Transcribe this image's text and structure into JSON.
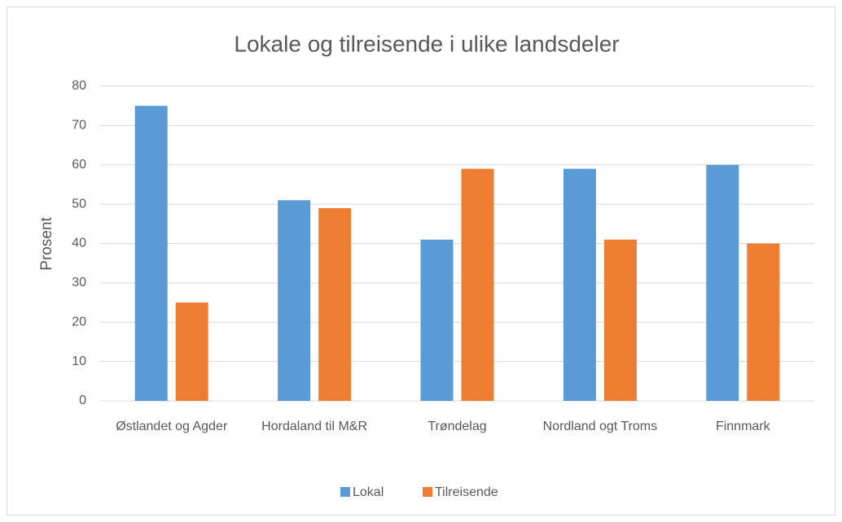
{
  "chart_data": {
    "type": "bar",
    "title": "Lokale og tilreisende i ulike landsdeler",
    "y_label": "Prosent",
    "categories": [
      "Østlandet og Agder",
      "Hordaland til M&R",
      "Trøndelag",
      "Nordland ogt Troms",
      "Finnmark"
    ],
    "series": [
      {
        "name": "Lokal",
        "color": "#5b9bd5",
        "values": [
          75,
          51,
          41,
          59,
          60
        ]
      },
      {
        "name": "Tilreisende",
        "color": "#ed7d31",
        "values": [
          25,
          49,
          59,
          41,
          40
        ]
      }
    ],
    "ylim": [
      0,
      80
    ],
    "yticks": [
      0,
      10,
      20,
      30,
      40,
      50,
      60,
      70,
      80
    ],
    "grid": true,
    "legend": "bottom"
  }
}
